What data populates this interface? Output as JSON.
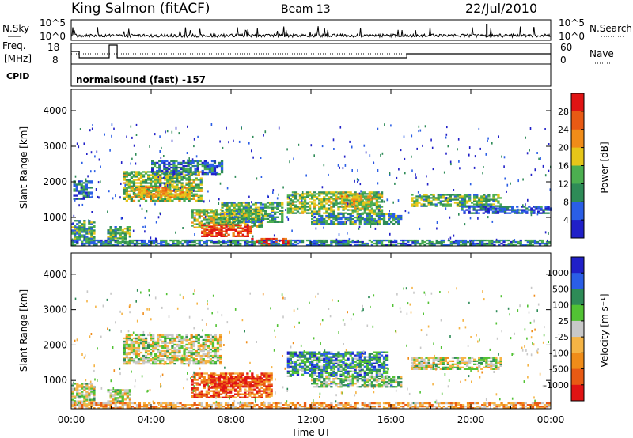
{
  "header": {
    "station": "King Salmon (fitACF)",
    "beam": "Beam 13",
    "date": "22/Jul/2010"
  },
  "top_panel": {
    "left_labels": [
      "N.Sky",
      "Freq.",
      "[MHz]",
      "CPID"
    ],
    "right_labels": [
      "N.Search",
      "Nave"
    ],
    "nsky_ticks": [
      "10^5",
      "10^0"
    ],
    "freq_ticks": [
      "18",
      "8"
    ],
    "nave_ticks": [
      "60",
      "0"
    ],
    "cpid_text": "normalsound (fast) -157"
  },
  "colors": {
    "power": [
      "#2020c8",
      "#2a5ee6",
      "#2e8b57",
      "#4caf50",
      "#e6c619",
      "#f08c19",
      "#e85a14",
      "#e01414"
    ],
    "velocity": [
      "#e01414",
      "#e85a14",
      "#f08c19",
      "#f5b445",
      "#c8c8c8",
      "#52c234",
      "#2e8b57",
      "#2a5ee6",
      "#2020c8"
    ]
  },
  "chart_data": [
    {
      "type": "heatmap",
      "panel": "power",
      "ylabel": "Slant Range [km]",
      "yticks": [
        "1000",
        "2000",
        "3000",
        "4000"
      ],
      "ylim": [
        200,
        4600
      ],
      "xlim": [
        0,
        24
      ],
      "colorbar_label": "Power [dB]",
      "colorbar_ticks": [
        "4",
        "8",
        "12",
        "16",
        "20",
        "24",
        "28"
      ],
      "clim": [
        0,
        32
      ],
      "regions": [
        {
          "t0": 0.0,
          "t1": 1.2,
          "r0": 300,
          "r1": 900,
          "level": 0.35
        },
        {
          "t0": 0.1,
          "t1": 1.0,
          "r0": 1500,
          "r1": 2000,
          "level": 0.2
        },
        {
          "t0": 1.8,
          "t1": 3.0,
          "r0": 350,
          "r1": 750,
          "level": 0.4
        },
        {
          "t0": 2.6,
          "t1": 6.5,
          "r0": 1450,
          "r1": 2300,
          "level": 0.45
        },
        {
          "t0": 3.0,
          "t1": 6.0,
          "r0": 1550,
          "r1": 1850,
          "level": 0.65
        },
        {
          "t0": 4.0,
          "t1": 7.5,
          "r0": 2200,
          "r1": 2600,
          "level": 0.2
        },
        {
          "t0": 6.0,
          "t1": 9.5,
          "r0": 700,
          "r1": 1200,
          "level": 0.5
        },
        {
          "t0": 6.5,
          "t1": 9.0,
          "r0": 450,
          "r1": 800,
          "level": 0.9
        },
        {
          "t0": 9.0,
          "t1": 11.0,
          "r0": 200,
          "r1": 400,
          "level": 0.95
        },
        {
          "t0": 7.5,
          "t1": 10.5,
          "r0": 850,
          "r1": 1400,
          "level": 0.35
        },
        {
          "t0": 10.8,
          "t1": 15.5,
          "r0": 1100,
          "r1": 1700,
          "level": 0.45
        },
        {
          "t0": 12.0,
          "t1": 16.5,
          "r0": 800,
          "r1": 1100,
          "level": 0.3
        },
        {
          "t0": 13.5,
          "t1": 15.0,
          "r0": 1300,
          "r1": 1600,
          "level": 0.6
        },
        {
          "t0": 17.0,
          "t1": 21.5,
          "r0": 1300,
          "r1": 1650,
          "level": 0.4
        },
        {
          "t0": 19.5,
          "t1": 24.0,
          "r0": 1100,
          "r1": 1300,
          "level": 0.15
        },
        {
          "t0": 0.0,
          "t1": 24.0,
          "r0": 200,
          "r1": 350,
          "level": 0.25
        }
      ]
    },
    {
      "type": "heatmap",
      "panel": "velocity",
      "ylabel": "Slant Range [km]",
      "yticks": [
        "1000",
        "2000",
        "3000",
        "4000"
      ],
      "ylim": [
        200,
        4600
      ],
      "xlim": [
        0,
        24
      ],
      "colorbar_label": "Velocity [m s⁻¹]",
      "colorbar_ticks": [
        "1000",
        "500",
        "100",
        "25",
        "-25",
        "-100",
        "-500",
        "-1000"
      ],
      "xticks": [
        "00:00",
        "04:00",
        "08:00",
        "12:00",
        "16:00",
        "20:00",
        "00:00"
      ],
      "xlabel": "Time UT",
      "regions": [
        {
          "t0": 0.0,
          "t1": 1.2,
          "r0": 300,
          "r1": 900,
          "level": 0.5
        },
        {
          "t0": 1.8,
          "t1": 3.0,
          "r0": 350,
          "r1": 750,
          "level": 0.5
        },
        {
          "t0": 2.6,
          "t1": 7.5,
          "r0": 1450,
          "r1": 2300,
          "level": 0.5
        },
        {
          "t0": 6.0,
          "t1": 10.0,
          "r0": 500,
          "r1": 1200,
          "level": 0.15
        },
        {
          "t0": 7.0,
          "t1": 9.5,
          "r0": 800,
          "r1": 1100,
          "level": 0.05
        },
        {
          "t0": 10.8,
          "t1": 15.8,
          "r0": 1100,
          "r1": 1800,
          "level": 0.75
        },
        {
          "t0": 12.0,
          "t1": 16.5,
          "r0": 800,
          "r1": 1100,
          "level": 0.6
        },
        {
          "t0": 17.0,
          "t1": 21.5,
          "r0": 1300,
          "r1": 1650,
          "level": 0.5
        },
        {
          "t0": 0.0,
          "t1": 24.0,
          "r0": 200,
          "r1": 350,
          "level": 0.3
        }
      ]
    }
  ]
}
